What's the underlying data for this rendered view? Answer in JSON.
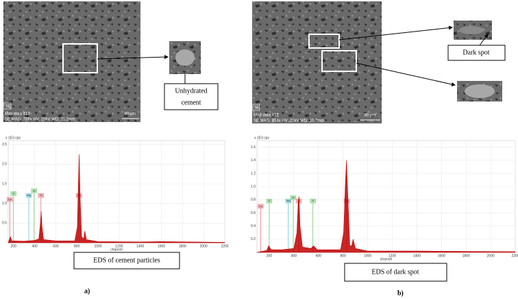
{
  "images": [
    {
      "overlay": "SE",
      "map": "Map data 413",
      "info": "SE MAG: 766x HV: 20kV WD: 11.2mm",
      "scale": "80 µm",
      "callout": [
        "Unhydrated",
        "cement"
      ],
      "caption": "EDS of cement particles",
      "panel": "a)"
    },
    {
      "overlay": "SE",
      "map": "Map data 412",
      "info": "SE MAG: 854x HV: 20kV WD: 10.7mm",
      "scale": "80 µm",
      "callout": [
        "Dark spot"
      ],
      "caption": "EDS of dark spot",
      "panel": "b)"
    }
  ],
  "chart_data": [
    {
      "type": "area",
      "y_label": "x 1E3 cps",
      "x_label": "channel",
      "color": "#c00000",
      "grid": true,
      "xlim": [
        150,
        2200
      ],
      "ylim": [
        0,
        2.6
      ],
      "xticks": [
        200,
        400,
        600,
        800,
        1000,
        1200,
        1400,
        1600,
        1800,
        2000,
        2200
      ],
      "yticks": [
        0.5,
        {
          "value": 1,
          "label": "1.0"
        },
        1.5,
        {
          "value": 2,
          "label": "2.0"
        },
        2.5
      ],
      "x": [
        150,
        170,
        185,
        300,
        400,
        440,
        455,
        462,
        470,
        485,
        600,
        780,
        805,
        815,
        822,
        830,
        845,
        865,
        875,
        890,
        1000,
        1400,
        1600,
        2200
      ],
      "values": [
        0,
        0.15,
        0.05,
        0.04,
        0.06,
        0.1,
        0.5,
        0.8,
        0.4,
        0.08,
        0.05,
        0.05,
        0.4,
        1.6,
        2.25,
        1.2,
        0.15,
        0.1,
        0.3,
        0.08,
        0.03,
        0.02,
        0.03,
        0.01
      ],
      "markers": [
        {
          "name": "Ca",
          "channel": 165,
          "level": 1.05,
          "color": "#e8707a"
        },
        {
          "name": "O",
          "channel": 200,
          "level": 1.2,
          "color": "#6ccb6c"
        },
        {
          "name": "Mg",
          "channel": 345,
          "level": 1.15,
          "color": "#5ec6d6"
        },
        {
          "name": "Al",
          "channel": 395,
          "level": 1.27,
          "color": "#6ccb6c"
        },
        {
          "name": "Si",
          "channel": 460,
          "level": 1.15,
          "color": "#e8707a"
        },
        {
          "name": "Ca",
          "channel": 820,
          "level": 1.15,
          "color": "#e8707a"
        }
      ]
    },
    {
      "type": "area",
      "y_label": "x 1E3 cps",
      "x_label": "channel",
      "color": "#c00000",
      "grid": true,
      "xlim": [
        100,
        2200
      ],
      "ylim": [
        0,
        1.7
      ],
      "xticks": [
        200,
        400,
        600,
        800,
        1000,
        1200,
        1400,
        1600,
        1800,
        2000,
        2200
      ],
      "yticks": [
        0.2,
        0.4,
        0.6,
        0.8,
        {
          "value": 1,
          "label": "1.0"
        },
        1.2,
        1.4,
        1.6
      ],
      "x": [
        100,
        180,
        195,
        215,
        300,
        400,
        425,
        435,
        442,
        450,
        470,
        540,
        560,
        590,
        780,
        805,
        818,
        828,
        838,
        855,
        870,
        882,
        900,
        1000,
        1400,
        2200
      ],
      "values": [
        0,
        0.03,
        0.1,
        0.04,
        0.04,
        0.06,
        0.3,
        0.75,
        0.85,
        0.4,
        0.08,
        0.06,
        0.1,
        0.04,
        0.04,
        0.3,
        1.0,
        1.4,
        0.9,
        0.1,
        0.1,
        0.2,
        0.06,
        0.02,
        0.02,
        0.01
      ],
      "markers": [
        {
          "name": "Ca",
          "channel": 130,
          "level": 0.67,
          "color": "#e8707a"
        },
        {
          "name": "O",
          "channel": 200,
          "level": 0.75,
          "color": "#6ccb6c"
        },
        {
          "name": "Mg",
          "channel": 355,
          "level": 0.75,
          "color": "#5ec6d6"
        },
        {
          "name": "Al",
          "channel": 395,
          "level": 0.8,
          "color": "#6ccb6c"
        },
        {
          "name": "Si",
          "channel": 440,
          "level": 0.75,
          "color": "#e8707a"
        },
        {
          "name": "S",
          "channel": 555,
          "level": 0.75,
          "color": "#6ccb6c"
        },
        {
          "name": "Ca",
          "channel": 830,
          "level": 0.75,
          "color": "#e8707a"
        }
      ]
    }
  ]
}
